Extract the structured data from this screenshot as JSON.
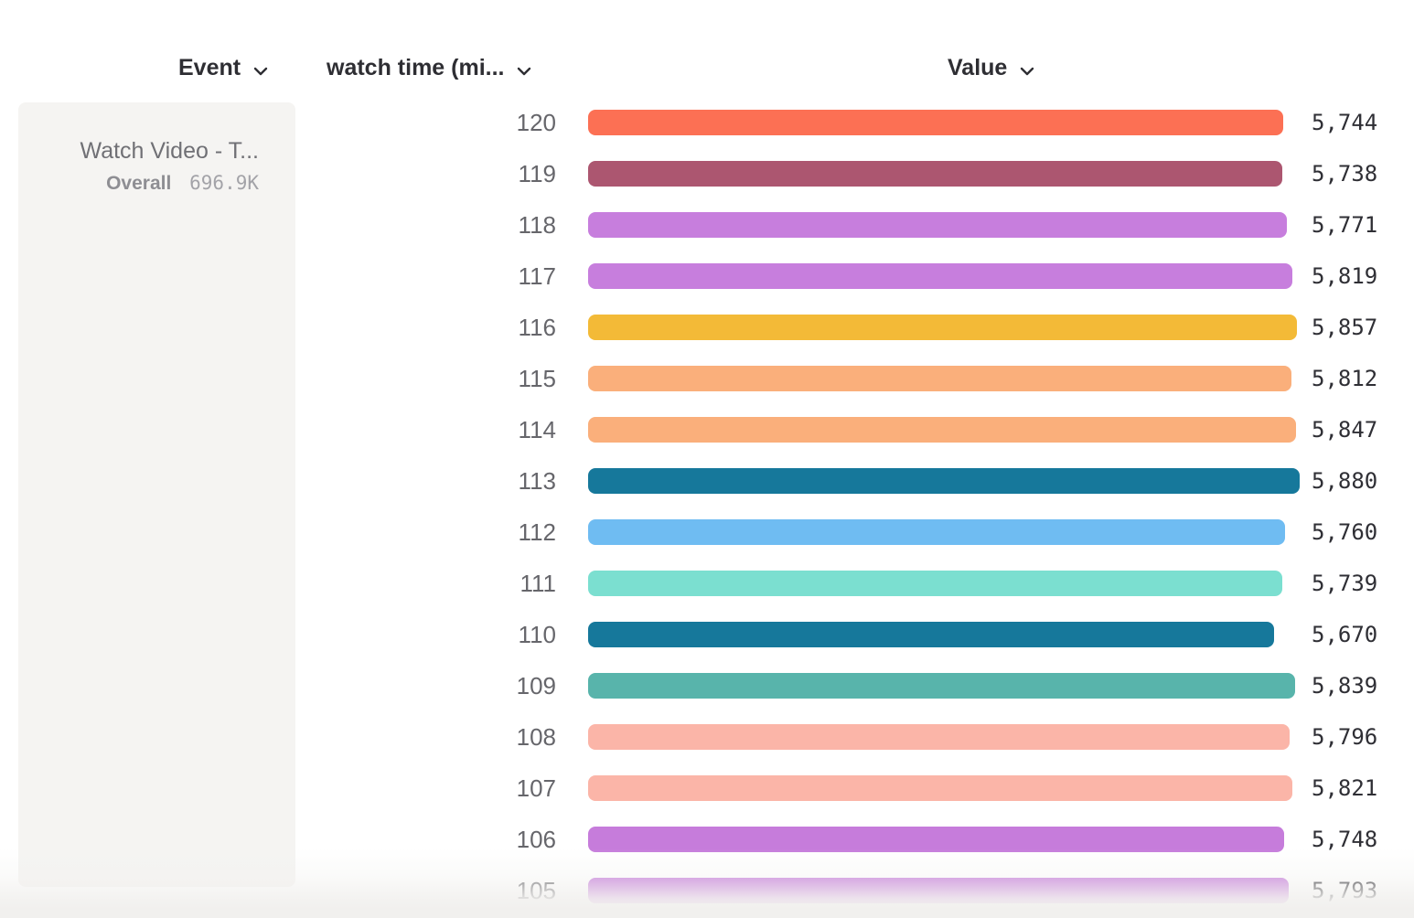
{
  "header": {
    "event_label": "Event",
    "measure_label": "watch time (mi...",
    "value_label": "Value"
  },
  "event_card": {
    "title": "Watch Video - T...",
    "overall_label": "Overall",
    "overall_value": "696.9K"
  },
  "chart_data": {
    "type": "bar",
    "orientation": "horizontal",
    "title": "watch time (mi... by Value",
    "xlabel": "Value",
    "ylabel": "watch time (minutes)",
    "xlim": [
      0,
      5880
    ],
    "grid": false,
    "legend_position": "none",
    "categories": [
      "120",
      "119",
      "118",
      "117",
      "116",
      "115",
      "114",
      "113",
      "112",
      "111",
      "110",
      "109",
      "108",
      "107",
      "106",
      "105"
    ],
    "values": [
      5744,
      5738,
      5771,
      5819,
      5857,
      5812,
      5847,
      5880,
      5760,
      5739,
      5670,
      5839,
      5796,
      5821,
      5748,
      5793
    ],
    "value_labels": [
      "5,744",
      "5,738",
      "5,771",
      "5,819",
      "5,857",
      "5,812",
      "5,847",
      "5,880",
      "5,760",
      "5,739",
      "5,670",
      "5,839",
      "5,796",
      "5,821",
      "5,748",
      "5,793"
    ],
    "colors": [
      "#FC7054",
      "#AC5670",
      "#C77EDD",
      "#C77EDD",
      "#F3BA37",
      "#FAAF7B",
      "#FAAF7B",
      "#16789B",
      "#6FBCF2",
      "#7BDFD0",
      "#16789B",
      "#58B4AB",
      "#FBB5A8",
      "#FBB5A8",
      "#C67CDB",
      "#C67CDB"
    ]
  },
  "icons": {
    "chevron_down": "chevron-down"
  }
}
